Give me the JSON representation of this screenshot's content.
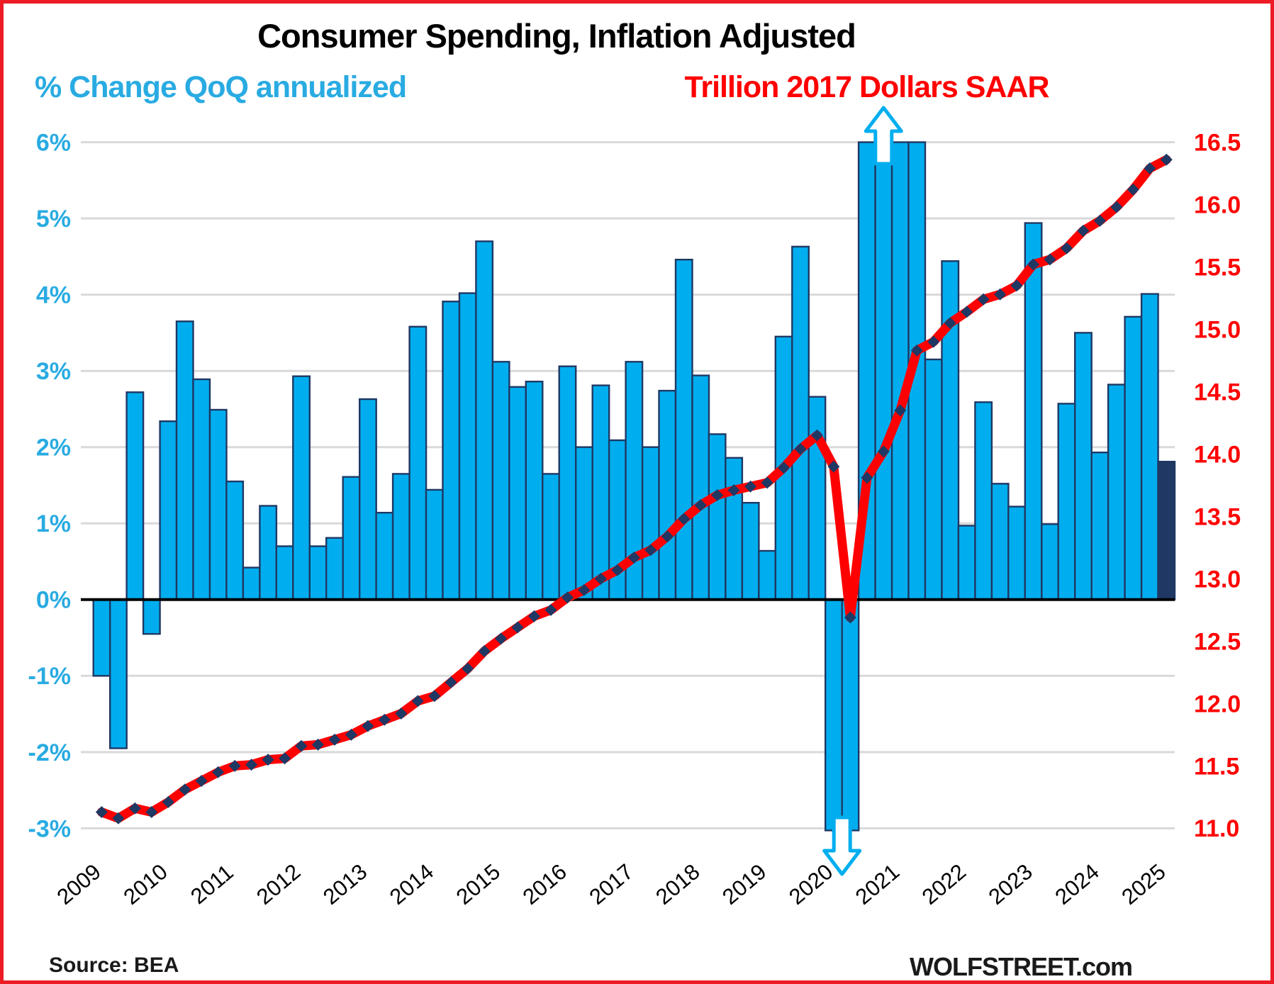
{
  "title": "Consumer Spending, Inflation Adjusted",
  "left_axis_title": "% Change QoQ annualized",
  "right_axis_title": "Trillion 2017 Dollars SAAR",
  "footer": {
    "source": "Source: BEA",
    "brand": "WOLFSTREET.com"
  },
  "colors": {
    "bar_fill": "#00AEEF",
    "bar_last_fill": "#1F3864",
    "bar_stroke": "#1F3864",
    "line": "#FF0000",
    "marker": "#1F3864",
    "left_text": "#29ABE2",
    "right_text": "#FF0000",
    "grid": "#D9D9D9",
    "zero_line": "#000000",
    "frame_border": "#ED1C24",
    "title_text": "#000000",
    "year_text": "#000000",
    "arrow_stroke": "#00AEEF",
    "arrow_fill": "#FFFFFF"
  },
  "chart_data": {
    "type": "bar+line",
    "title": "Consumer Spending, Inflation Adjusted",
    "grid": true,
    "legend_position": "top (colored axis titles act as legend)",
    "quarters": [
      "2009 Q1",
      "2009 Q2",
      "2009 Q3",
      "2009 Q4",
      "2010 Q1",
      "2010 Q2",
      "2010 Q3",
      "2010 Q4",
      "2011 Q1",
      "2011 Q2",
      "2011 Q3",
      "2011 Q4",
      "2012 Q1",
      "2012 Q2",
      "2012 Q3",
      "2012 Q4",
      "2013 Q1",
      "2013 Q2",
      "2013 Q3",
      "2013 Q4",
      "2014 Q1",
      "2014 Q2",
      "2014 Q3",
      "2014 Q4",
      "2015 Q1",
      "2015 Q2",
      "2015 Q3",
      "2015 Q4",
      "2016 Q1",
      "2016 Q2",
      "2016 Q3",
      "2016 Q4",
      "2017 Q1",
      "2017 Q2",
      "2017 Q3",
      "2017 Q4",
      "2018 Q1",
      "2018 Q2",
      "2018 Q3",
      "2018 Q4",
      "2019 Q1",
      "2019 Q2",
      "2019 Q3",
      "2019 Q4",
      "2020 Q1",
      "2020 Q2",
      "2020 Q3",
      "2020 Q4",
      "2021 Q1",
      "2021 Q2",
      "2021 Q3",
      "2021 Q4",
      "2022 Q1",
      "2022 Q2",
      "2022 Q3",
      "2022 Q4",
      "2023 Q1",
      "2023 Q2",
      "2023 Q3",
      "2023 Q4",
      "2024 Q1",
      "2024 Q2",
      "2024 Q3",
      "2024 Q4",
      "2025 Q1"
    ],
    "bar_series": {
      "name": "% Change QoQ annualized (left axis, blue bars)",
      "values": [
        -1.0,
        -1.95,
        2.72,
        -0.45,
        2.34,
        3.65,
        2.89,
        2.49,
        1.55,
        0.42,
        1.23,
        0.7,
        2.93,
        0.7,
        0.81,
        1.61,
        2.63,
        1.14,
        1.65,
        3.58,
        1.44,
        3.91,
        4.02,
        4.7,
        3.12,
        2.79,
        2.86,
        1.65,
        3.06,
        2.0,
        2.81,
        2.09,
        3.12,
        2.0,
        2.74,
        4.46,
        2.94,
        2.17,
        1.86,
        1.27,
        0.64,
        3.45,
        4.63,
        2.66,
        -3.1,
        -3.2,
        6.3,
        6.3,
        6.3,
        6.3,
        3.15,
        4.44,
        0.97,
        2.59,
        1.52,
        1.22,
        4.94,
        0.99,
        2.57,
        3.5,
        1.93,
        2.82,
        3.71,
        4.01,
        1.81
      ],
      "clipped_above_axis": [
        "2020 Q3",
        "2020 Q4",
        "2021 Q1",
        "2021 Q2"
      ],
      "clipped_below_axis": [
        "2020 Q1",
        "2020 Q2"
      ],
      "up_arrow_at": "2020 Q4",
      "down_arrow_at": "2020 Q2",
      "last_bar_highlighted": "2025 Q1"
    },
    "line_series": {
      "name": "Trillion 2017 Dollars SAAR (right axis, red line)",
      "values": [
        11.13,
        11.08,
        11.16,
        11.13,
        11.21,
        11.31,
        11.38,
        11.45,
        11.5,
        11.51,
        11.55,
        11.56,
        11.66,
        11.67,
        11.71,
        11.75,
        11.82,
        11.87,
        11.92,
        12.02,
        12.06,
        12.17,
        12.28,
        12.42,
        12.52,
        12.61,
        12.7,
        12.75,
        12.85,
        12.91,
        13.0,
        13.07,
        13.17,
        13.23,
        13.34,
        13.48,
        13.59,
        13.67,
        13.71,
        13.74,
        13.77,
        13.89,
        14.04,
        14.15,
        13.9,
        12.69,
        13.81,
        14.02,
        14.35,
        14.83,
        14.9,
        15.05,
        15.14,
        15.24,
        15.28,
        15.35,
        15.52,
        15.56,
        15.65,
        15.79,
        15.87,
        15.98,
        16.12,
        16.29,
        16.36
      ]
    },
    "left_axis": {
      "ticks": [
        "6%",
        "5%",
        "4%",
        "3%",
        "2%",
        "1%",
        "0%",
        "-1%",
        "-2%",
        "-3%"
      ],
      "min": -3,
      "max": 6,
      "unit": "percent"
    },
    "right_axis": {
      "ticks": [
        "16.5",
        "16.0",
        "15.5",
        "15.0",
        "14.5",
        "14.0",
        "13.5",
        "13.0",
        "12.5",
        "12.0",
        "11.5",
        "11.0"
      ],
      "min": 11.0,
      "max": 16.5,
      "unit": "trillion 2017 dollars"
    },
    "x_labels": [
      "2009",
      "2010",
      "2011",
      "2012",
      "2013",
      "2014",
      "2015",
      "2016",
      "2017",
      "2018",
      "2019",
      "2020",
      "2021",
      "2022",
      "2023",
      "2024",
      "2025"
    ]
  }
}
